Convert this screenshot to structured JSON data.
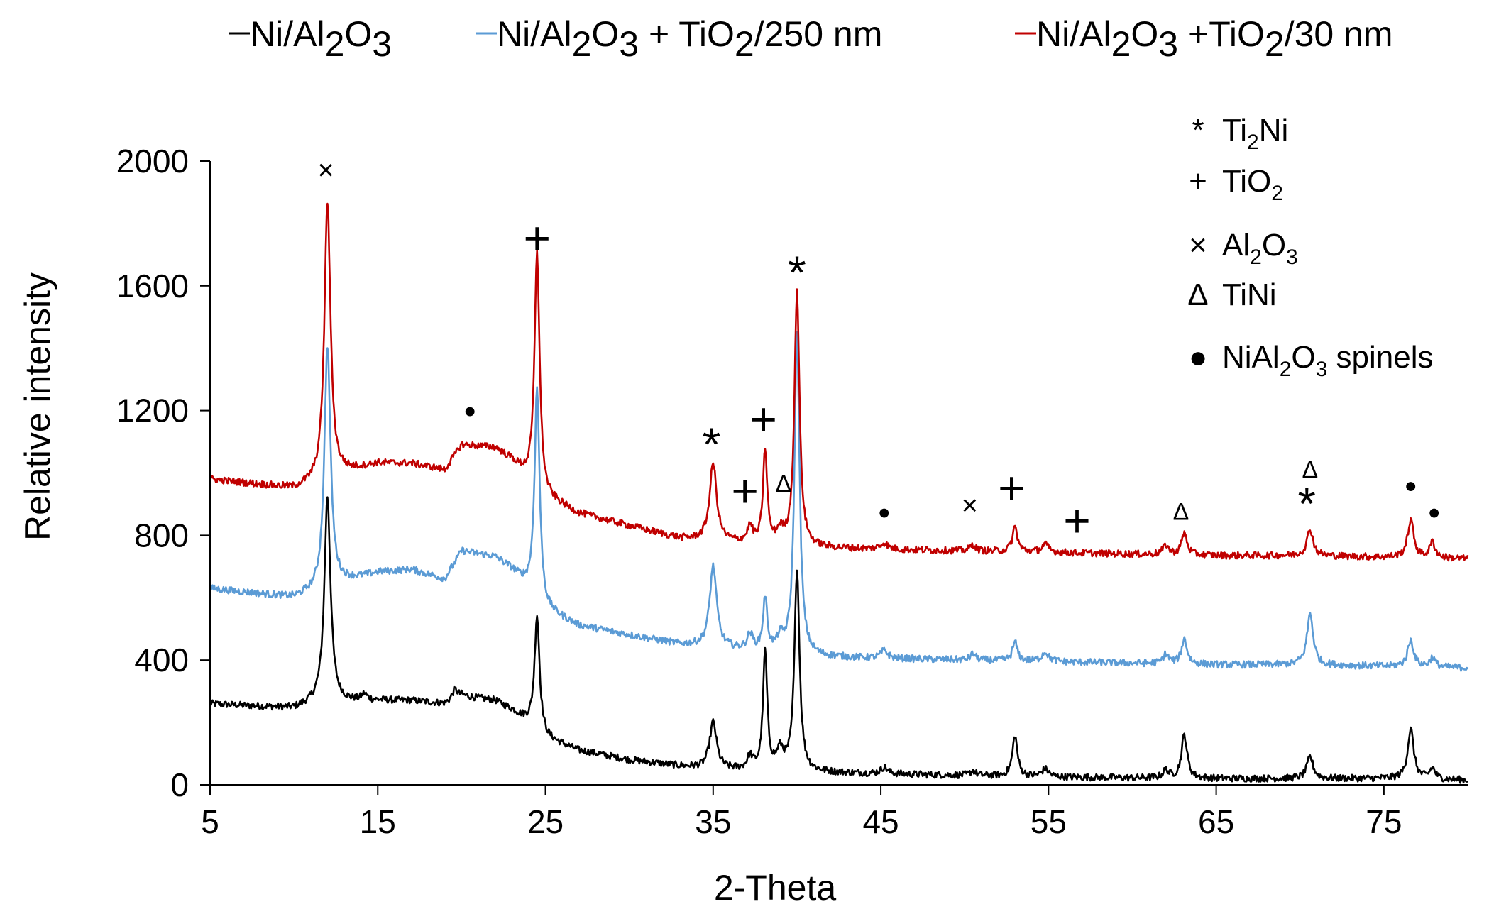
{
  "chart_data": {
    "type": "line",
    "title": "",
    "xlabel": "2-Theta",
    "ylabel": "Relative intensity",
    "xlim": [
      5,
      80
    ],
    "ylim": [
      0,
      2000
    ],
    "xticks": [
      5,
      15,
      25,
      35,
      45,
      55,
      65,
      75
    ],
    "yticks": [
      0,
      400,
      800,
      1200,
      1600,
      2000
    ],
    "grid": false,
    "legend_position": "top",
    "series": [
      {
        "name": "Ni/Al2O3",
        "legend": {
          "a": "Ni/Al",
          "b": "2",
          "c": "O",
          "d": "3",
          "e": ""
        },
        "color": "#000000",
        "baseline": [
          [
            5,
            260
          ],
          [
            10,
            245
          ],
          [
            11.5,
            265
          ],
          [
            13,
            265
          ],
          [
            15,
            270
          ],
          [
            17,
            270
          ],
          [
            19,
            260
          ],
          [
            20,
            285
          ],
          [
            22,
            270
          ],
          [
            23,
            240
          ],
          [
            24,
            200
          ],
          [
            25,
            150
          ],
          [
            27,
            110
          ],
          [
            30,
            80
          ],
          [
            33,
            60
          ],
          [
            35,
            50
          ],
          [
            38,
            45
          ],
          [
            41,
            40
          ],
          [
            45,
            35
          ],
          [
            50,
            30
          ],
          [
            55,
            25
          ],
          [
            60,
            22
          ],
          [
            65,
            20
          ],
          [
            70,
            20
          ],
          [
            75,
            20
          ],
          [
            80,
            15
          ]
        ],
        "peaks": [
          [
            12.0,
            660,
            0.22
          ],
          [
            14.2,
            20,
            0.2
          ],
          [
            19.6,
            30,
            0.2
          ],
          [
            24.5,
            370,
            0.18
          ],
          [
            35.0,
            150,
            0.25
          ],
          [
            37.2,
            40,
            0.2
          ],
          [
            38.1,
            380,
            0.15
          ],
          [
            39.0,
            60,
            0.25
          ],
          [
            40.0,
            650,
            0.18
          ],
          [
            45.2,
            20,
            0.25
          ],
          [
            50.5,
            15,
            0.2
          ],
          [
            53.0,
            130,
            0.18
          ],
          [
            54.8,
            25,
            0.25
          ],
          [
            62.0,
            25,
            0.2
          ],
          [
            63.1,
            140,
            0.2
          ],
          [
            70.6,
            70,
            0.22
          ],
          [
            76.6,
            160,
            0.22
          ],
          [
            77.9,
            35,
            0.2
          ]
        ]
      },
      {
        "name": "Ni/Al2O3 + TiO2/250 nm",
        "legend": {
          "a": "Ni/Al",
          "b": "2",
          "c": "O",
          "d": "3",
          "e": " + TiO",
          "f": "2",
          "g": "/250 nm"
        },
        "color": "#5b9bd5",
        "baseline": [
          [
            5,
            630
          ],
          [
            10,
            600
          ],
          [
            11.5,
            620
          ],
          [
            13,
            650
          ],
          [
            15,
            680
          ],
          [
            17,
            690
          ],
          [
            19,
            660
          ],
          [
            20,
            750
          ],
          [
            22,
            730
          ],
          [
            23,
            690
          ],
          [
            24,
            630
          ],
          [
            25,
            560
          ],
          [
            27,
            510
          ],
          [
            30,
            480
          ],
          [
            33,
            450
          ],
          [
            35,
            440
          ],
          [
            38,
            425
          ],
          [
            41,
            410
          ],
          [
            45,
            405
          ],
          [
            50,
            400
          ],
          [
            55,
            395
          ],
          [
            60,
            390
          ],
          [
            65,
            385
          ],
          [
            70,
            385
          ],
          [
            75,
            380
          ],
          [
            80,
            375
          ]
        ],
        "peaks": [
          [
            12.0,
            780,
            0.22
          ],
          [
            24.5,
            680,
            0.18
          ],
          [
            35.0,
            260,
            0.25
          ],
          [
            37.2,
            50,
            0.2
          ],
          [
            38.1,
            170,
            0.15
          ],
          [
            39.0,
            40,
            0.25
          ],
          [
            40.0,
            1040,
            0.18
          ],
          [
            45.2,
            25,
            0.25
          ],
          [
            50.5,
            20,
            0.2
          ],
          [
            53.0,
            60,
            0.18
          ],
          [
            54.8,
            30,
            0.25
          ],
          [
            62.0,
            30,
            0.2
          ],
          [
            63.1,
            80,
            0.2
          ],
          [
            70.6,
            165,
            0.22
          ],
          [
            76.6,
            85,
            0.22
          ],
          [
            77.9,
            30,
            0.2
          ]
        ]
      },
      {
        "name": "Ni/Al2O3 + TiO2/30 nm",
        "legend": {
          "a": "Ni/Al",
          "b": "2",
          "c": "O",
          "d": "3",
          "e": " +TiO",
          "f": "2",
          "g": "/30 nm"
        },
        "color": "#c00000",
        "baseline": [
          [
            5,
            980
          ],
          [
            10,
            950
          ],
          [
            11.5,
            970
          ],
          [
            13,
            1000
          ],
          [
            15,
            1030
          ],
          [
            17,
            1030
          ],
          [
            19,
            1010
          ],
          [
            20,
            1090
          ],
          [
            22,
            1080
          ],
          [
            23,
            1040
          ],
          [
            24,
            980
          ],
          [
            25,
            920
          ],
          [
            27,
            870
          ],
          [
            30,
            830
          ],
          [
            33,
            790
          ],
          [
            35,
            780
          ],
          [
            38,
            770
          ],
          [
            41,
            760
          ],
          [
            45,
            755
          ],
          [
            50,
            750
          ],
          [
            55,
            745
          ],
          [
            60,
            740
          ],
          [
            65,
            735
          ],
          [
            70,
            735
          ],
          [
            75,
            730
          ],
          [
            80,
            725
          ]
        ],
        "peaks": [
          [
            12.0,
            890,
            0.22
          ],
          [
            24.5,
            760,
            0.18
          ],
          [
            35.0,
            250,
            0.25
          ],
          [
            37.2,
            50,
            0.2
          ],
          [
            38.1,
            300,
            0.15
          ],
          [
            39.0,
            40,
            0.25
          ],
          [
            40.0,
            820,
            0.18
          ],
          [
            45.2,
            20,
            0.25
          ],
          [
            50.5,
            20,
            0.2
          ],
          [
            53.0,
            80,
            0.18
          ],
          [
            54.8,
            25,
            0.25
          ],
          [
            62.0,
            30,
            0.2
          ],
          [
            63.1,
            70,
            0.2
          ],
          [
            70.6,
            85,
            0.22
          ],
          [
            76.6,
            120,
            0.22
          ],
          [
            77.9,
            50,
            0.2
          ]
        ]
      }
    ],
    "annotations": [
      {
        "symbol": "×",
        "x": 11.9,
        "y": 1965,
        "size": 40
      },
      {
        "symbol": "+",
        "x": 24.5,
        "y": 1740,
        "size": 66
      },
      {
        "symbol": "●",
        "x": 20.5,
        "y": 1195,
        "size": 30
      },
      {
        "symbol": "*",
        "x": 34.9,
        "y": 1080,
        "size": 66
      },
      {
        "symbol": "+",
        "x": 36.9,
        "y": 930,
        "size": 66
      },
      {
        "symbol": "+",
        "x": 38.0,
        "y": 1160,
        "size": 66
      },
      {
        "symbol": "Δ",
        "x": 39.2,
        "y": 960,
        "size": 34
      },
      {
        "symbol": "*",
        "x": 40.0,
        "y": 1630,
        "size": 66
      },
      {
        "symbol": "●",
        "x": 45.2,
        "y": 870,
        "size": 30
      },
      {
        "symbol": "×",
        "x": 50.3,
        "y": 890,
        "size": 40
      },
      {
        "symbol": "+",
        "x": 52.8,
        "y": 940,
        "size": 66
      },
      {
        "symbol": "+",
        "x": 56.7,
        "y": 835,
        "size": 66
      },
      {
        "symbol": "Δ",
        "x": 62.9,
        "y": 870,
        "size": 34
      },
      {
        "symbol": "Δ",
        "x": 70.6,
        "y": 1005,
        "size": 34
      },
      {
        "symbol": "*",
        "x": 70.4,
        "y": 890,
        "size": 66
      },
      {
        "symbol": "●",
        "x": 76.6,
        "y": 955,
        "size": 30
      },
      {
        "symbol": "●",
        "x": 78.0,
        "y": 870,
        "size": 30
      }
    ],
    "phase_key": [
      {
        "symbol": "*",
        "a": "Ti",
        "b": "2",
        "c": "Ni",
        "d": "",
        "e": ""
      },
      {
        "symbol": "+",
        "a": "TiO",
        "b": "2",
        "c": "",
        "d": "",
        "e": ""
      },
      {
        "symbol": "×",
        "a": "  Al",
        "b": "2",
        "c": "O",
        "d": "3",
        "e": ""
      },
      {
        "symbol": "Δ",
        "a": "  TiNi",
        "b": "",
        "c": "",
        "d": "",
        "e": ""
      },
      {
        "symbol": "●",
        "a": "NiAl",
        "b": "2",
        "c": "O",
        "d": "3",
        "e": " spinels"
      }
    ]
  }
}
